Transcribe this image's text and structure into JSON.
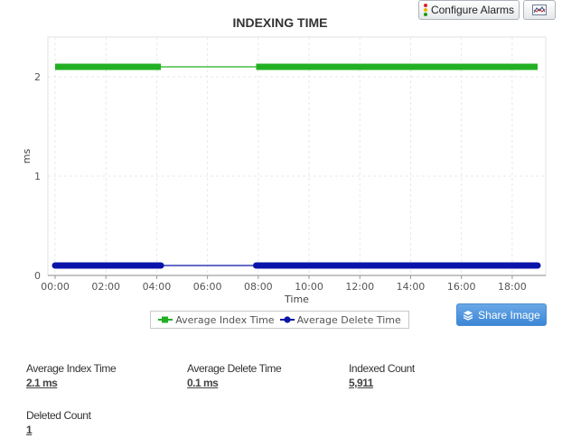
{
  "toolbar": {
    "configure_alarms_label": "Configure Alarms",
    "traffic_light_icon": "traffic-light-icon",
    "chart_type_icon": "line-chart-icon"
  },
  "chart_data": {
    "type": "line",
    "title": "INDEXING TIME",
    "xlabel": "Time",
    "ylabel": "ms",
    "x_ticks": [
      "00:00",
      "02:00",
      "04:00",
      "06:00",
      "08:00",
      "10:00",
      "12:00",
      "14:00",
      "16:00",
      "18:00"
    ],
    "y_ticks": [
      "0",
      "1",
      "2"
    ],
    "xlim": [
      "00:00",
      "19:00"
    ],
    "ylim": [
      0,
      2.4
    ],
    "grid": true,
    "legend_position": "bottom",
    "series": [
      {
        "name": "Average Index Time",
        "color": "#22b022",
        "marker": "square",
        "segments": [
          {
            "from": "00:00",
            "to": "04:10",
            "value": 2.1
          },
          {
            "from": "07:55",
            "to": "19:00",
            "value": 2.1
          }
        ],
        "gap": {
          "from": "04:10",
          "to": "07:55",
          "value": 2.1
        }
      },
      {
        "name": "Average Delete Time",
        "color": "#0b14a8",
        "marker": "circle",
        "segments": [
          {
            "from": "00:00",
            "to": "04:10",
            "value": 0.1
          },
          {
            "from": "07:55",
            "to": "19:00",
            "value": 0.1
          }
        ],
        "gap": {
          "from": "04:10",
          "to": "07:55",
          "value": 0.1
        }
      }
    ]
  },
  "share": {
    "label": "Share Image",
    "icon": "layers-icon"
  },
  "stats": [
    {
      "label": "Average Index Time",
      "value": "2.1 ms"
    },
    {
      "label": "Average Delete Time",
      "value": "0.1 ms"
    },
    {
      "label": "Indexed Count",
      "value": "5,911"
    },
    {
      "label": "Deleted Count",
      "value": "1"
    }
  ]
}
